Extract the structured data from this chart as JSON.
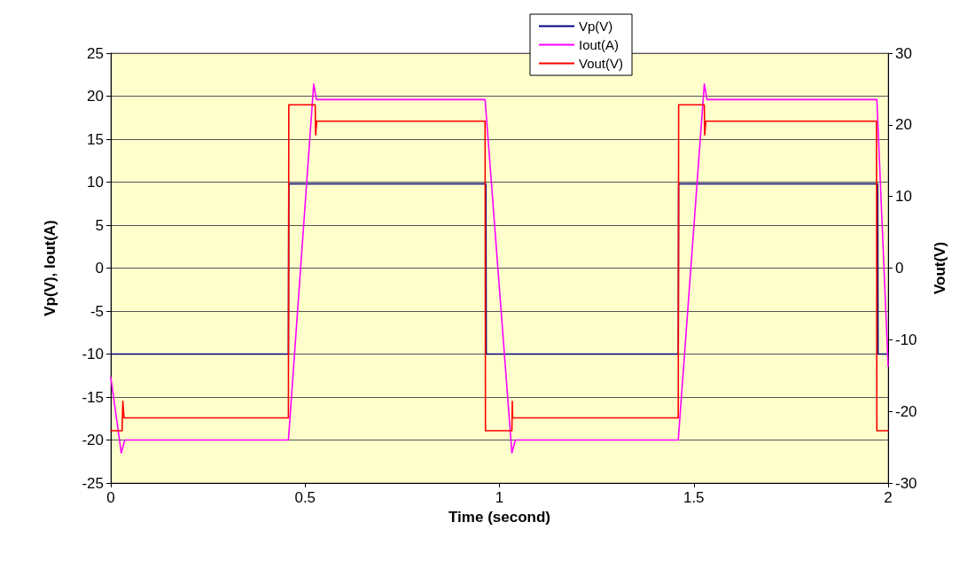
{
  "chart_data": {
    "type": "line",
    "xlabel": "Time (second)",
    "ylabel": "Vp(V), Iout(A)",
    "y2label": "Vout(V)",
    "xlim": [
      0,
      2
    ],
    "xticks": [
      0,
      0.5,
      1,
      1.5,
      2
    ],
    "ylim": [
      -25,
      25
    ],
    "yticks": [
      -25,
      -20,
      -15,
      -10,
      -5,
      0,
      5,
      10,
      15,
      20,
      25
    ],
    "y2lim": [
      -30,
      30
    ],
    "y2ticks": [
      -30,
      -20,
      -10,
      0,
      10,
      20,
      30
    ],
    "grid": "y",
    "legend": "top",
    "marker": "none",
    "line_style": "solid",
    "series": [
      {
        "name": "Vp(V)",
        "color": "#000080",
        "x": [
          0,
          0.457,
          0.458,
          0.965,
          0.966,
          1.46,
          1.461,
          1.973,
          1.974,
          2
        ],
        "values": [
          -10,
          -10,
          9.8,
          9.8,
          -10,
          -10,
          9.8,
          9.8,
          -10,
          -10
        ]
      },
      {
        "name": "Iout(A)",
        "color": "#ff00ff",
        "x": [
          0,
          0.027,
          0.036,
          0.457,
          0.522,
          0.529,
          0.963,
          1.032,
          1.041,
          1.46,
          1.527,
          1.534,
          1.971,
          2
        ],
        "values": [
          -12.7,
          -21.5,
          -20,
          -20,
          21.4,
          19.6,
          19.6,
          -21.5,
          -20,
          -20,
          21.4,
          19.6,
          19.6,
          -11.4
        ]
      },
      {
        "name": "Vout(V)",
        "color": "#ff0000",
        "axis": "y2",
        "x": [
          0,
          0.029,
          0.03,
          0.031,
          0.034,
          0.457,
          0.458,
          0.526,
          0.527,
          0.53,
          0.963,
          0.964,
          1.032,
          1.033,
          1.034,
          1.037,
          1.46,
          1.461,
          1.527,
          1.528,
          1.531,
          1.97,
          1.971,
          2
        ],
        "values": [
          -22.7,
          -22.7,
          -22.7,
          -18.6,
          -20.9,
          -20.9,
          22.8,
          22.8,
          18.6,
          20.5,
          20.5,
          -22.7,
          -22.7,
          -18.6,
          -20.9,
          -20.9,
          -20.9,
          22.8,
          22.8,
          18.6,
          20.5,
          20.5,
          -22.7,
          -22.7
        ]
      }
    ]
  }
}
